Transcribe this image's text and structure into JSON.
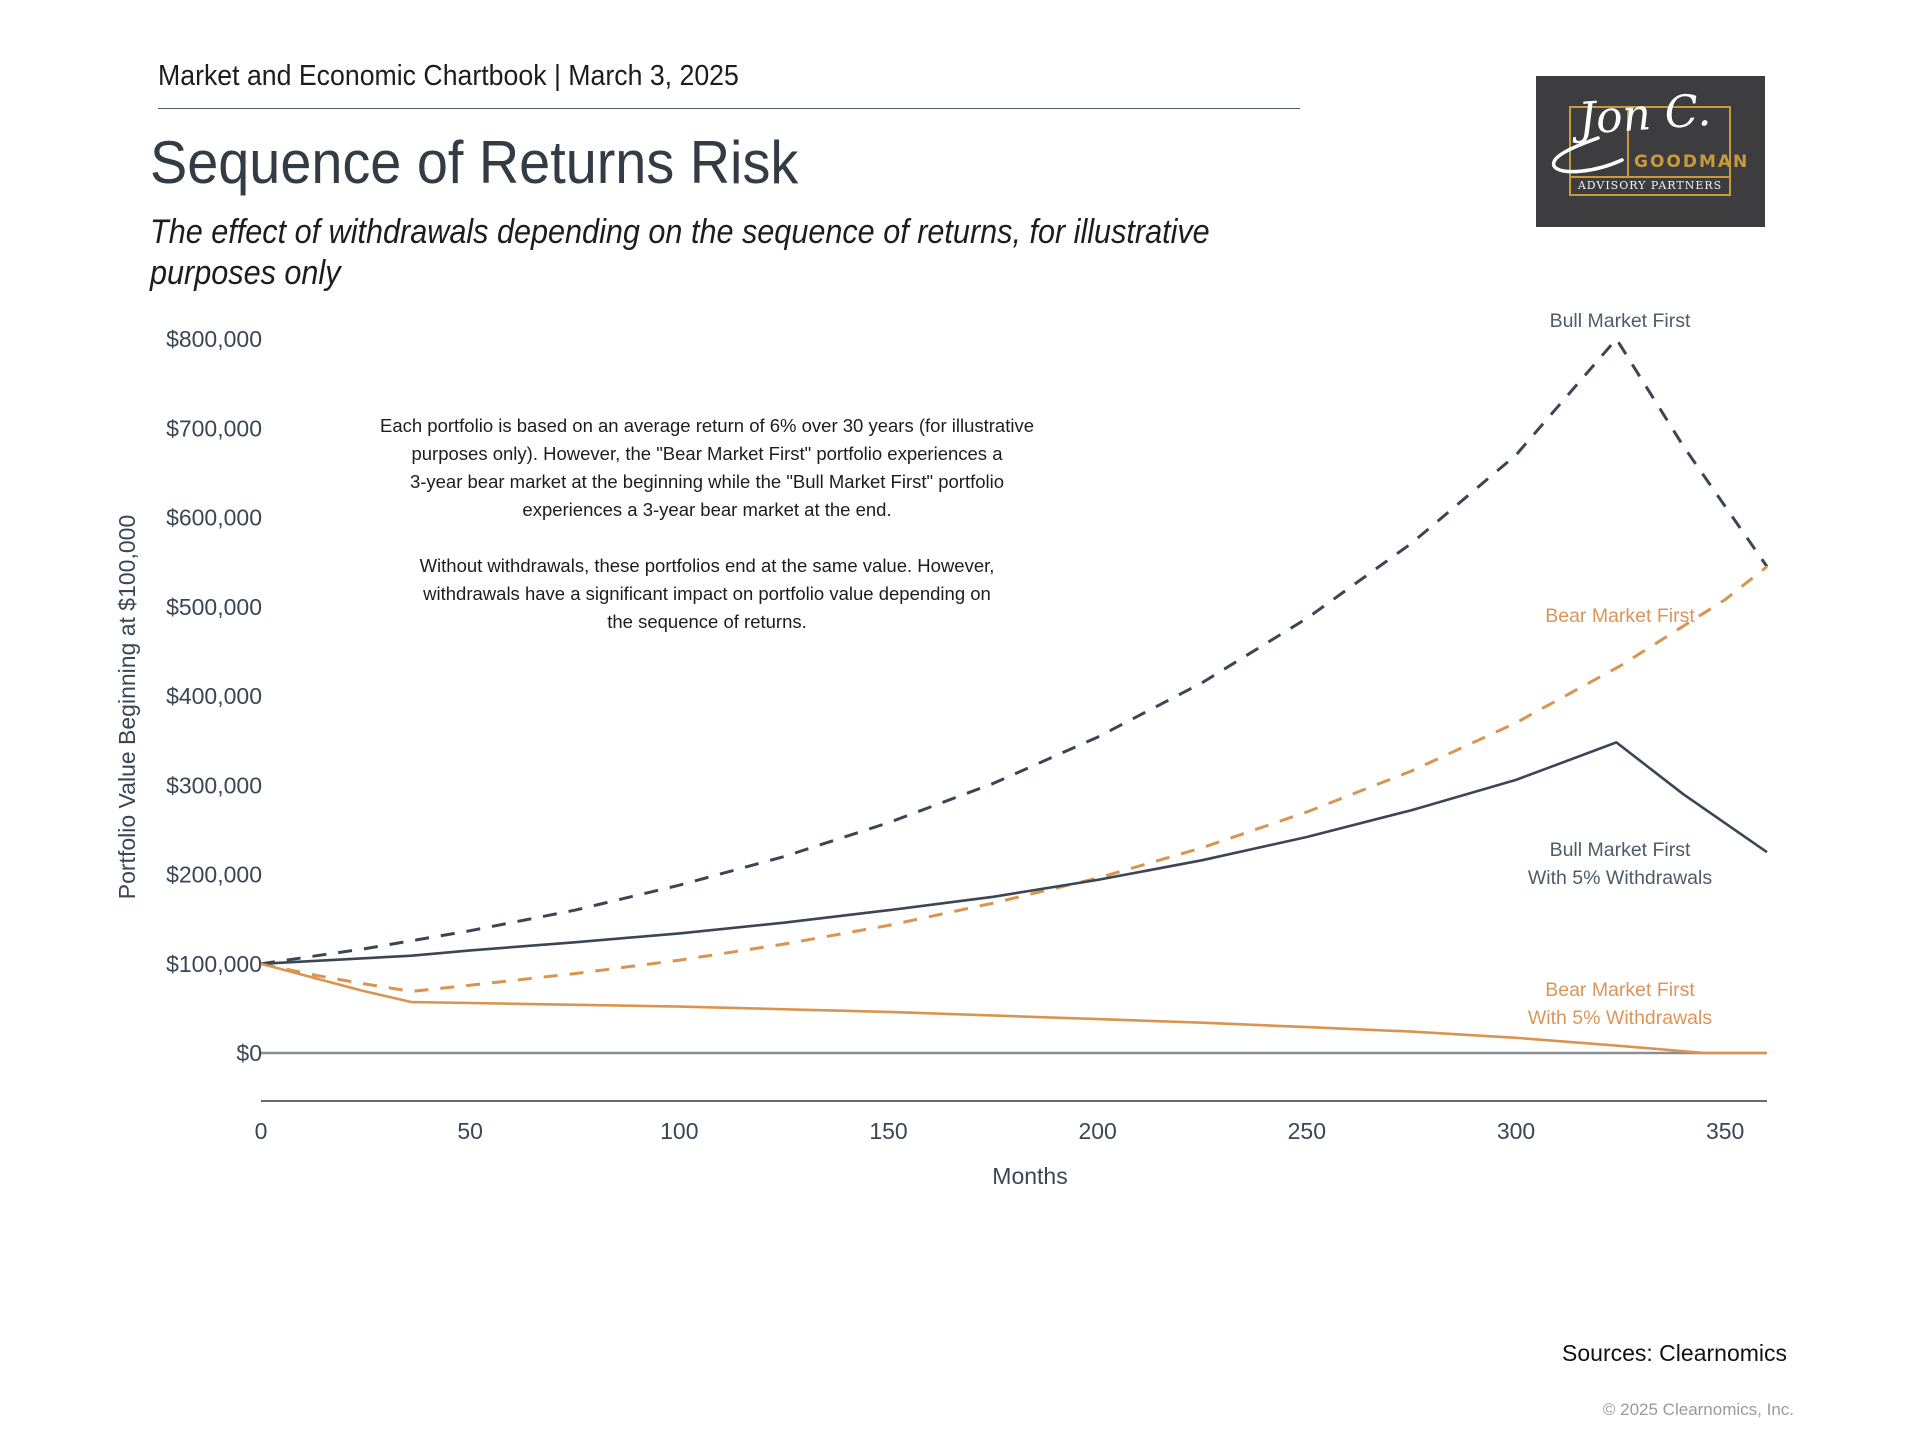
{
  "header": {
    "kicker": "Market and Economic Chartbook | March 3, 2025",
    "title": "Sequence of Returns Risk",
    "subtitle": "The effect of withdrawals depending on the sequence of returns, for illustrative purposes only"
  },
  "logo": {
    "signature": "Jon C.",
    "brand": "GOODMAN",
    "tagline": "ADVISORY PARTNERS"
  },
  "annotation": {
    "paragraph1": [
      "Each portfolio is based on an average return of 6% over 30 years (for illustrative",
      "purposes only). However, the \"Bear Market First\" portfolio experiences a",
      "3-year bear market at the beginning while the \"Bull Market First\" portfolio",
      "experiences a 3-year bear market at the end."
    ],
    "paragraph2": [
      "Without withdrawals, these portfolios end at the same value. However,",
      "withdrawals have a significant impact on portfolio value depending on",
      "the sequence of returns."
    ]
  },
  "footer": {
    "sources": "Sources: Clearnomics",
    "copyright": "© 2025 Clearnomics, Inc."
  },
  "colors": {
    "bull": "#3a4653",
    "bear": "#d99550",
    "axis": "#666b70",
    "zero_line": "#8a8f94"
  },
  "chart_data": {
    "type": "line",
    "title": "Sequence of Returns Risk",
    "xlabel": "Months",
    "ylabel": "Portfolio Value Beginning at $100,000",
    "xlim": [
      0,
      360
    ],
    "ylim": [
      0,
      800000
    ],
    "x_ticks": [
      0,
      50,
      100,
      150,
      200,
      250,
      300,
      350
    ],
    "x_tick_labels": [
      "0",
      "50",
      "100",
      "150",
      "200",
      "250",
      "300",
      "350"
    ],
    "y_ticks": [
      0,
      100000,
      200000,
      300000,
      400000,
      500000,
      600000,
      700000,
      800000
    ],
    "y_tick_labels": [
      "$0",
      "$100,000",
      "$200,000",
      "$300,000",
      "$400,000",
      "$500,000",
      "$600,000",
      "$700,000",
      "$800,000"
    ],
    "grid": false,
    "series": [
      {
        "name": "Bull Market First",
        "label_lines": [
          "Bull Market First"
        ],
        "color_key": "bull",
        "style": "dashed",
        "x": [
          0,
          25,
          50,
          75,
          100,
          125,
          150,
          175,
          200,
          225,
          250,
          275,
          300,
          324,
          340,
          360
        ],
        "y": [
          100000,
          117000,
          137000,
          160000,
          188000,
          220000,
          258000,
          302000,
          354000,
          415000,
          487000,
          571000,
          670000,
          800000,
          680000,
          545000
        ]
      },
      {
        "name": "Bear Market First",
        "label_lines": [
          "Bear Market First"
        ],
        "color_key": "bear",
        "style": "dashed",
        "x": [
          0,
          12,
          24,
          36,
          50,
          75,
          100,
          125,
          150,
          175,
          200,
          225,
          250,
          275,
          300,
          325,
          350,
          360
        ],
        "y": [
          100000,
          88000,
          78000,
          69000,
          76000,
          89000,
          104000,
          122000,
          143000,
          168000,
          196000,
          230000,
          270000,
          316000,
          370000,
          434000,
          508000,
          545000
        ]
      },
      {
        "name": "Bull Market First With 5% Withdrawals",
        "label_lines": [
          "Bull Market First",
          "With 5% Withdrawals"
        ],
        "color_key": "bull",
        "style": "solid",
        "x": [
          0,
          36,
          50,
          75,
          100,
          125,
          150,
          175,
          200,
          225,
          250,
          275,
          300,
          324,
          340,
          360
        ],
        "y": [
          100000,
          109000,
          115000,
          124000,
          134000,
          146000,
          160000,
          175000,
          194000,
          216000,
          242000,
          272000,
          306000,
          348000,
          290000,
          225000
        ]
      },
      {
        "name": "Bear Market First With 5% Withdrawals",
        "label_lines": [
          "Bear Market First",
          "With 5% Withdrawals"
        ],
        "color_key": "bear",
        "style": "solid",
        "x": [
          0,
          12,
          24,
          36,
          50,
          100,
          150,
          200,
          225,
          250,
          275,
          300,
          325,
          345,
          360
        ],
        "y": [
          100000,
          85000,
          70000,
          57000,
          56000,
          52000,
          46000,
          38000,
          34000,
          29000,
          24000,
          17000,
          8000,
          0,
          0
        ]
      }
    ]
  }
}
